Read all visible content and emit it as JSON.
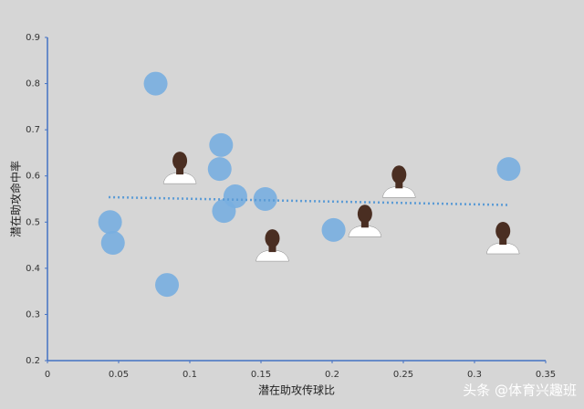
{
  "chart_data": {
    "type": "scatter",
    "x_label": "潜在助攻传球比",
    "y_label": "潜在助攻命中率",
    "xlim": [
      0,
      0.35
    ],
    "xticks": [
      0,
      0.05,
      0.1,
      0.15,
      0.2,
      0.25,
      0.3,
      0.35
    ],
    "ylim": [
      0.2,
      0.9
    ],
    "yticks": [
      0.2,
      0.3,
      0.4,
      0.5,
      0.6,
      0.7,
      0.8,
      0.9
    ],
    "series": [
      {
        "color": "#78aee0",
        "x": [
          0.076,
          0.122,
          0.121,
          0.044,
          0.046,
          0.084,
          0.132,
          0.124,
          0.153,
          0.201,
          0.324
        ],
        "y": [
          0.8,
          0.667,
          0.615,
          0.5,
          0.455,
          0.364,
          0.556,
          0.524,
          0.55,
          0.483,
          0.615
        ]
      },
      {
        "color": "#4a2e22",
        "x": [
          0.093,
          0.158,
          0.223,
          0.247,
          0.32
        ],
        "y": [
          0.615,
          0.447,
          0.5,
          0.585,
          0.463
        ]
      }
    ],
    "trendline": {
      "color": "#5b9bd5",
      "x": [
        0.043,
        0.325
      ],
      "y": [
        0.554,
        0.537
      ]
    },
    "axis_color": "#4472c4",
    "watermark": "头条 @体育兴趣班"
  }
}
